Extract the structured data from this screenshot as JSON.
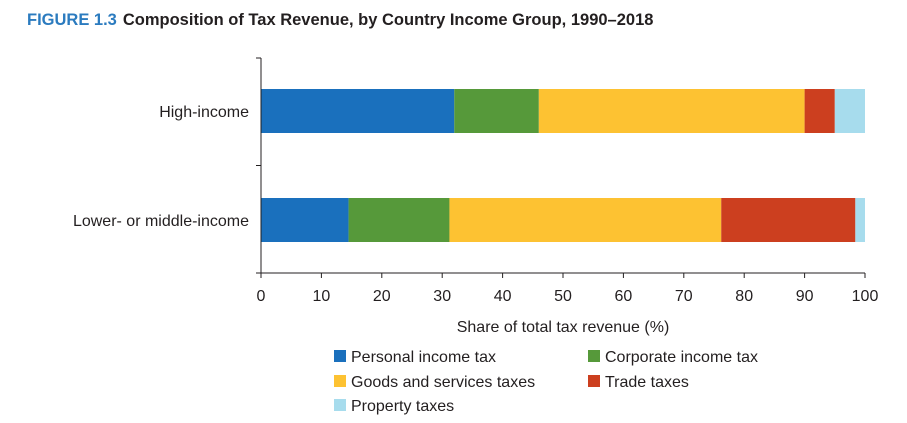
{
  "figure": {
    "label": "FIGURE 1.3",
    "title": "Composition of Tax Revenue, by Country Income Group, 1990–2018"
  },
  "chart_data": {
    "type": "bar",
    "orientation": "horizontal",
    "stacked": true,
    "categories": [
      "High-income",
      "Lower- or middle-income"
    ],
    "series": [
      {
        "name": "Personal income tax",
        "color": "#1a70bd",
        "values": [
          32,
          14.5
        ]
      },
      {
        "name": "Corporate income tax",
        "color": "#56993a",
        "values": [
          14,
          16.7
        ]
      },
      {
        "name": "Goods and services taxes",
        "color": "#fdc232",
        "values": [
          44,
          45
        ]
      },
      {
        "name": "Trade taxes",
        "color": "#cc3f1f",
        "values": [
          5,
          22.2
        ]
      },
      {
        "name": "Property taxes",
        "color": "#a7dced",
        "values": [
          5,
          1.6
        ]
      }
    ],
    "xlabel": "Share of total tax revenue (%)",
    "xlim": [
      0,
      100
    ],
    "xticks": [
      "0",
      "10",
      "20",
      "30",
      "40",
      "50",
      "60",
      "70",
      "80",
      "90",
      "100"
    ],
    "grid": false,
    "legend": "bottom"
  }
}
